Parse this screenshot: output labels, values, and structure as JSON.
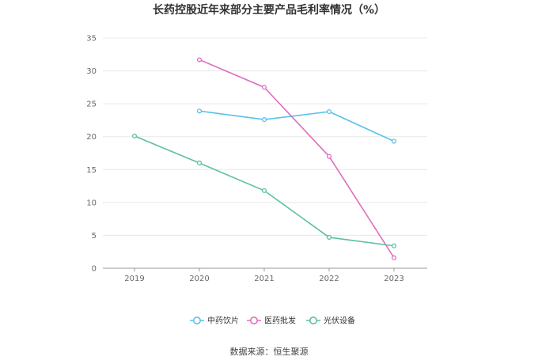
{
  "chart_data": {
    "type": "line",
    "title": "长药控股近年来部分主要产品毛利率情况（%）",
    "categories": [
      "2019",
      "2020",
      "2021",
      "2022",
      "2023"
    ],
    "ylim": [
      0,
      35
    ],
    "yticks": [
      0,
      5,
      10,
      15,
      20,
      25,
      30,
      35
    ],
    "grid": true,
    "legend_position": "bottom",
    "series": [
      {
        "name": "中药饮片",
        "color": "#5bc0eb",
        "values": [
          null,
          23.9,
          22.6,
          23.8,
          19.3
        ]
      },
      {
        "name": "医药批发",
        "color": "#dd6fbf",
        "values": [
          null,
          31.7,
          27.5,
          17.0,
          1.6
        ]
      },
      {
        "name": "光伏设备",
        "color": "#5dbfa3",
        "values": [
          20.1,
          16.0,
          11.8,
          4.7,
          3.4
        ]
      }
    ]
  },
  "source_text": "数据来源：恒生聚源"
}
